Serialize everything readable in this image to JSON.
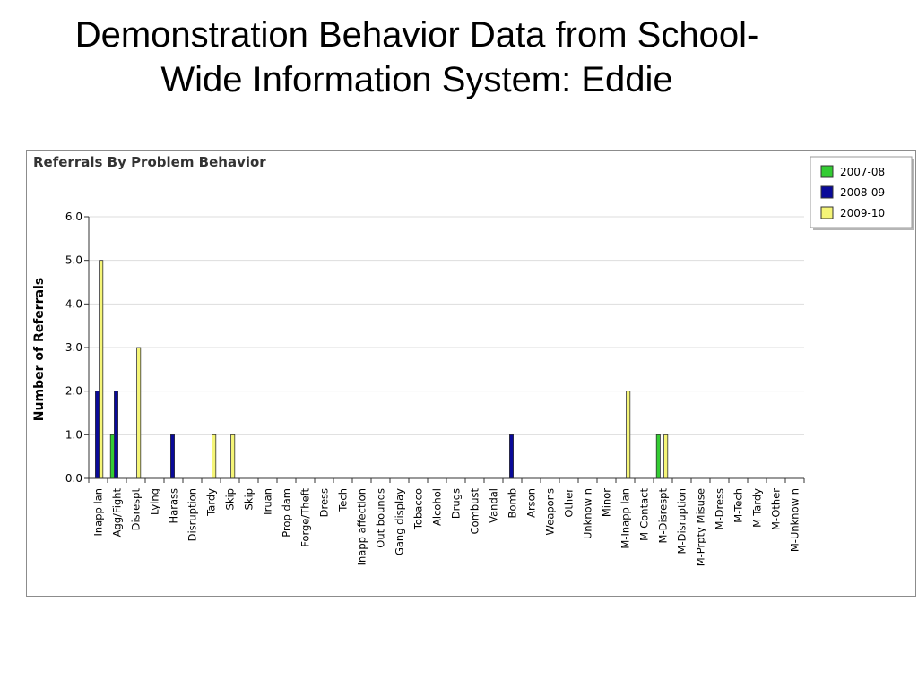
{
  "slide": {
    "title_line1": "Demonstration Behavior Data from School-",
    "title_line2": "Wide Information System: Eddie"
  },
  "chart_data": {
    "type": "bar",
    "title": "Referrals By Problem Behavior",
    "ylabel": "Number of Referrals",
    "xlabel": "",
    "ylim": [
      0,
      6
    ],
    "yticks": [
      "0.0",
      "1.0",
      "2.0",
      "3.0",
      "4.0",
      "5.0",
      "6.0"
    ],
    "grid": true,
    "legend_position": "top-right",
    "categories": [
      "Inapp lan",
      "Agg/Fight",
      "Disrespt",
      "Lying",
      "Harass",
      "Disruption",
      "Tardy",
      "Skip",
      "Skip",
      "Truan",
      "Prop dam",
      "Forge/Theft",
      "Dress",
      "Tech",
      "Inapp affection",
      "Out bounds",
      "Gang display",
      "Tobacco",
      "Alcohol",
      "Drugs",
      "Combust",
      "Vandal",
      "Bomb",
      "Arson",
      "Weapons",
      "Other",
      "Unknow n",
      "Minor",
      "M-Inapp lan",
      "M-Contact",
      "M-Disrespt",
      "M-Disruption",
      "M-Prpty Misuse",
      "M-Dress",
      "M-Tech",
      "M-Tardy",
      "M-Other",
      "M-Unknow n"
    ],
    "series": [
      {
        "name": "2007-08",
        "color": "#33cc33",
        "values": [
          0,
          1,
          0,
          0,
          0,
          0,
          0,
          0,
          0,
          0,
          0,
          0,
          0,
          0,
          0,
          0,
          0,
          0,
          0,
          0,
          0,
          0,
          0,
          0,
          0,
          0,
          0,
          0,
          0,
          0,
          1,
          0,
          0,
          0,
          0,
          0,
          0,
          0
        ]
      },
      {
        "name": "2008-09",
        "color": "#0a0a99",
        "values": [
          2,
          2,
          0,
          0,
          1,
          0,
          0,
          0,
          0,
          0,
          0,
          0,
          0,
          0,
          0,
          0,
          0,
          0,
          0,
          0,
          0,
          0,
          1,
          0,
          0,
          0,
          0,
          0,
          0,
          0,
          0,
          0,
          0,
          0,
          0,
          0,
          0,
          0
        ]
      },
      {
        "name": "2009-10",
        "color": "#f5f577",
        "values": [
          5,
          0,
          3,
          0,
          0,
          0,
          1,
          1,
          0,
          0,
          0,
          0,
          0,
          0,
          0,
          0,
          0,
          0,
          0,
          0,
          0,
          0,
          0,
          0,
          0,
          0,
          0,
          0,
          2,
          0,
          1,
          0,
          0,
          0,
          0,
          0,
          0,
          0
        ]
      }
    ]
  }
}
